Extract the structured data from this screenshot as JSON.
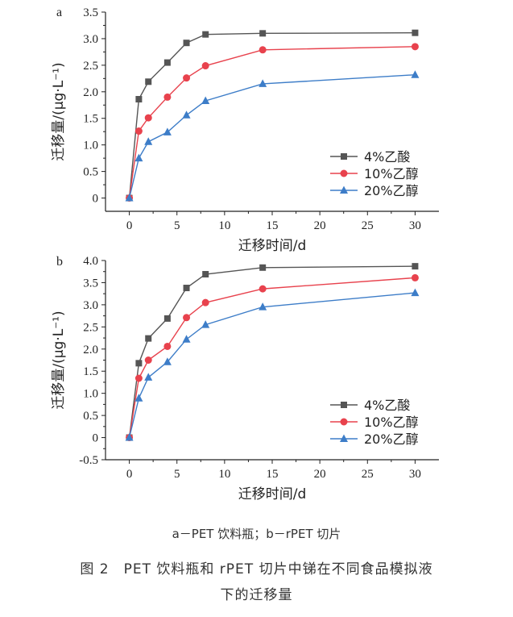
{
  "chart_data": [
    {
      "type": "line",
      "panel_label": "a",
      "xlabel": "迁移时间/d",
      "ylabel": "迁移量/(μg·L⁻¹)",
      "xlim": [
        -2.5,
        32.5
      ],
      "ylim": [
        -0.25,
        3.5
      ],
      "xticks": [
        "0",
        "5",
        "10",
        "15",
        "20",
        "25",
        "30"
      ],
      "yticks": [
        "0",
        "0.5",
        "1.0",
        "1.5",
        "2.0",
        "2.5",
        "3.0",
        "3.5"
      ],
      "legend_position": "bottom-right",
      "x": [
        0,
        1,
        2,
        4,
        6,
        8,
        14,
        30
      ],
      "series": [
        {
          "name": "4%乙酸",
          "color": "#555555",
          "marker": "square",
          "values": [
            0,
            1.86,
            2.19,
            2.55,
            2.92,
            3.08,
            3.1,
            3.11
          ]
        },
        {
          "name": "10%乙醇",
          "color": "#e8424d",
          "marker": "circle",
          "values": [
            0,
            1.26,
            1.51,
            1.9,
            2.26,
            2.49,
            2.79,
            2.85
          ]
        },
        {
          "name": "20%乙醇",
          "color": "#3d7dc8",
          "marker": "triangle",
          "values": [
            0,
            0.75,
            1.06,
            1.24,
            1.56,
            1.83,
            2.15,
            2.32
          ]
        }
      ]
    },
    {
      "type": "line",
      "panel_label": "b",
      "xlabel": "迁移时间/d",
      "ylabel": "迁移量/(μg·L⁻¹)",
      "xlim": [
        -2.5,
        32.5
      ],
      "ylim": [
        -0.5,
        4.0
      ],
      "xticks": [
        "0",
        "5",
        "10",
        "15",
        "20",
        "25",
        "30"
      ],
      "yticks": [
        "-0.5",
        "0",
        "0.5",
        "1.0",
        "1.5",
        "2.0",
        "2.5",
        "3.0",
        "3.5",
        "4.0"
      ],
      "legend_position": "bottom-right",
      "x": [
        0,
        1,
        2,
        4,
        6,
        8,
        14,
        30
      ],
      "series": [
        {
          "name": "4%乙酸",
          "color": "#555555",
          "marker": "square",
          "values": [
            0,
            1.68,
            2.24,
            2.69,
            3.38,
            3.69,
            3.84,
            3.87
          ]
        },
        {
          "name": "10%乙醇",
          "color": "#e8424d",
          "marker": "circle",
          "values": [
            0,
            1.34,
            1.75,
            2.06,
            2.71,
            3.05,
            3.36,
            3.61
          ]
        },
        {
          "name": "20%乙醇",
          "color": "#3d7dc8",
          "marker": "triangle",
          "values": [
            0,
            0.89,
            1.36,
            1.71,
            2.22,
            2.55,
            2.95,
            3.27
          ]
        }
      ]
    }
  ],
  "captions": {
    "sub": "a－PET 饮料瓶；b－rPET 切片",
    "figure_line1": "图 2　PET 饮料瓶和 rPET 切片中锑在不同食品模拟液",
    "figure_line2": "下的迁移量"
  }
}
